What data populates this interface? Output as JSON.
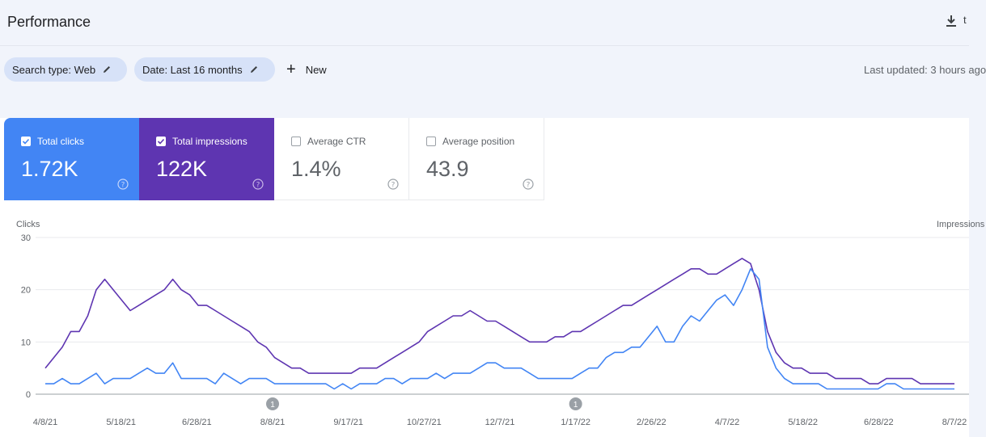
{
  "page": {
    "title": "Performance",
    "overflow_text": "t"
  },
  "filters": [
    {
      "label": "Search type: Web"
    },
    {
      "label": "Date: Last 16 months"
    }
  ],
  "new_button": {
    "label": "New"
  },
  "last_updated": "Last updated: 3 hours ago",
  "metrics": [
    {
      "label": "Total clicks",
      "value": "1.72K",
      "checked": true,
      "color": "#4285f4"
    },
    {
      "label": "Total impressions",
      "value": "122K",
      "checked": true,
      "color": "#5e35b1"
    },
    {
      "label": "Average CTR",
      "value": "1.4%",
      "checked": false,
      "color": "#ffffff"
    },
    {
      "label": "Average position",
      "value": "43.9",
      "checked": false,
      "color": "#ffffff"
    }
  ],
  "chart_data": {
    "type": "line",
    "ylabel": "Clicks",
    "y2label": "Impressions",
    "ylim": [
      0,
      30
    ],
    "yticks": [
      0,
      10,
      20,
      30
    ],
    "xticks": [
      "4/8/21",
      "5/18/21",
      "6/28/21",
      "8/8/21",
      "9/17/21",
      "10/27/21",
      "12/7/21",
      "1/17/22",
      "2/26/22",
      "4/7/22",
      "5/18/22",
      "6/28/22",
      "8/7/22"
    ],
    "annotations": [
      {
        "label": "1",
        "x": "8/8/21"
      },
      {
        "label": "1",
        "x": "1/17/22"
      }
    ],
    "grid": true,
    "series": [
      {
        "name": "Total clicks",
        "color": "#4285f4",
        "values": [
          2,
          2,
          3,
          2,
          2,
          3,
          4,
          2,
          3,
          3,
          3,
          4,
          5,
          4,
          4,
          6,
          3,
          3,
          3,
          3,
          2,
          4,
          3,
          2,
          3,
          3,
          3,
          2,
          2,
          2,
          2,
          2,
          2,
          2,
          1,
          2,
          1,
          2,
          2,
          2,
          3,
          3,
          2,
          3,
          3,
          3,
          4,
          3,
          4,
          4,
          4,
          5,
          6,
          6,
          5,
          5,
          5,
          4,
          3,
          3,
          3,
          3,
          3,
          4,
          5,
          5,
          7,
          8,
          8,
          9,
          9,
          11,
          13,
          10,
          10,
          13,
          15,
          14,
          16,
          18,
          19,
          17,
          20,
          24,
          22,
          9,
          5,
          3,
          2,
          2,
          2,
          2,
          1,
          1,
          1,
          1,
          1,
          1,
          1,
          2,
          2,
          1,
          1,
          1,
          1,
          1,
          1,
          1
        ]
      },
      {
        "name": "Total impressions",
        "color": "#5e35b1",
        "values": [
          5,
          7,
          9,
          12,
          12,
          15,
          20,
          22,
          20,
          18,
          16,
          17,
          18,
          19,
          20,
          22,
          20,
          19,
          17,
          17,
          16,
          15,
          14,
          13,
          12,
          10,
          9,
          7,
          6,
          5,
          5,
          4,
          4,
          4,
          4,
          4,
          4,
          5,
          5,
          5,
          6,
          7,
          8,
          9,
          10,
          12,
          13,
          14,
          15,
          15,
          16,
          15,
          14,
          14,
          13,
          12,
          11,
          10,
          10,
          10,
          11,
          11,
          12,
          12,
          13,
          14,
          15,
          16,
          17,
          17,
          18,
          19,
          20,
          21,
          22,
          23,
          24,
          24,
          23,
          23,
          24,
          25,
          26,
          25,
          20,
          12,
          8,
          6,
          5,
          5,
          4,
          4,
          4,
          3,
          3,
          3,
          3,
          2,
          2,
          3,
          3,
          3,
          3,
          2,
          2,
          2,
          2,
          2
        ]
      }
    ]
  }
}
